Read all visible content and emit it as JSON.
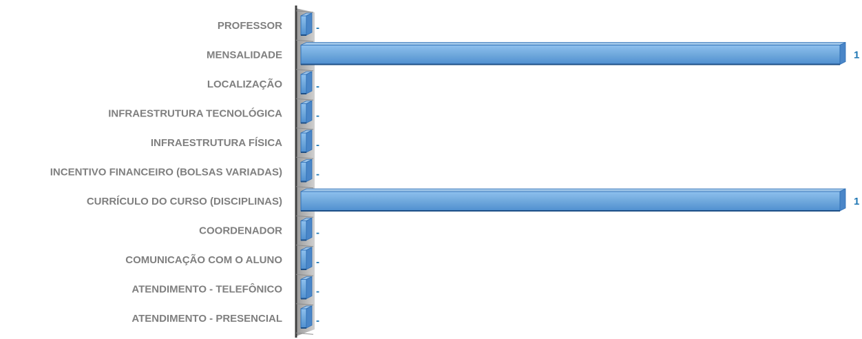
{
  "chart_data": {
    "type": "bar",
    "orientation": "horizontal",
    "style": "3d",
    "categories": [
      "PROFESSOR",
      "MENSALIDADE",
      "LOCALIZAÇÃO",
      "INFRAESTRUTURA TECNOLÓGICA",
      "INFRAESTRUTURA FÍSICA",
      "INCENTIVO FINANCEIRO (BOLSAS VARIADAS)",
      "CURRÍCULO DO CURSO (DISCIPLINAS)",
      "COORDENADOR",
      "COMUNICAÇÃO COM O ALUNO",
      "ATENDIMENTO - TELEFÔNICO",
      "ATENDIMENTO - PRESENCIAL"
    ],
    "values": [
      0,
      1,
      0,
      0,
      0,
      0,
      1,
      0,
      0,
      0,
      0
    ],
    "data_labels": [
      "-",
      "1",
      "-",
      "-",
      "-",
      "-",
      "1",
      "-",
      "-",
      "-",
      "-"
    ],
    "xlim": [
      0,
      1
    ],
    "grid": false,
    "legend": "none",
    "colors": {
      "bar_front": "#6fa8dc",
      "bar_top": "#9fc5e8",
      "bar_side": "#4a86c8",
      "bar_edge": "#2e6fb5",
      "axis_wall": "#a6a6a6",
      "axis_line": "#404040",
      "category_label": "#7f7f7f",
      "data_label": "#1f77b4"
    }
  }
}
